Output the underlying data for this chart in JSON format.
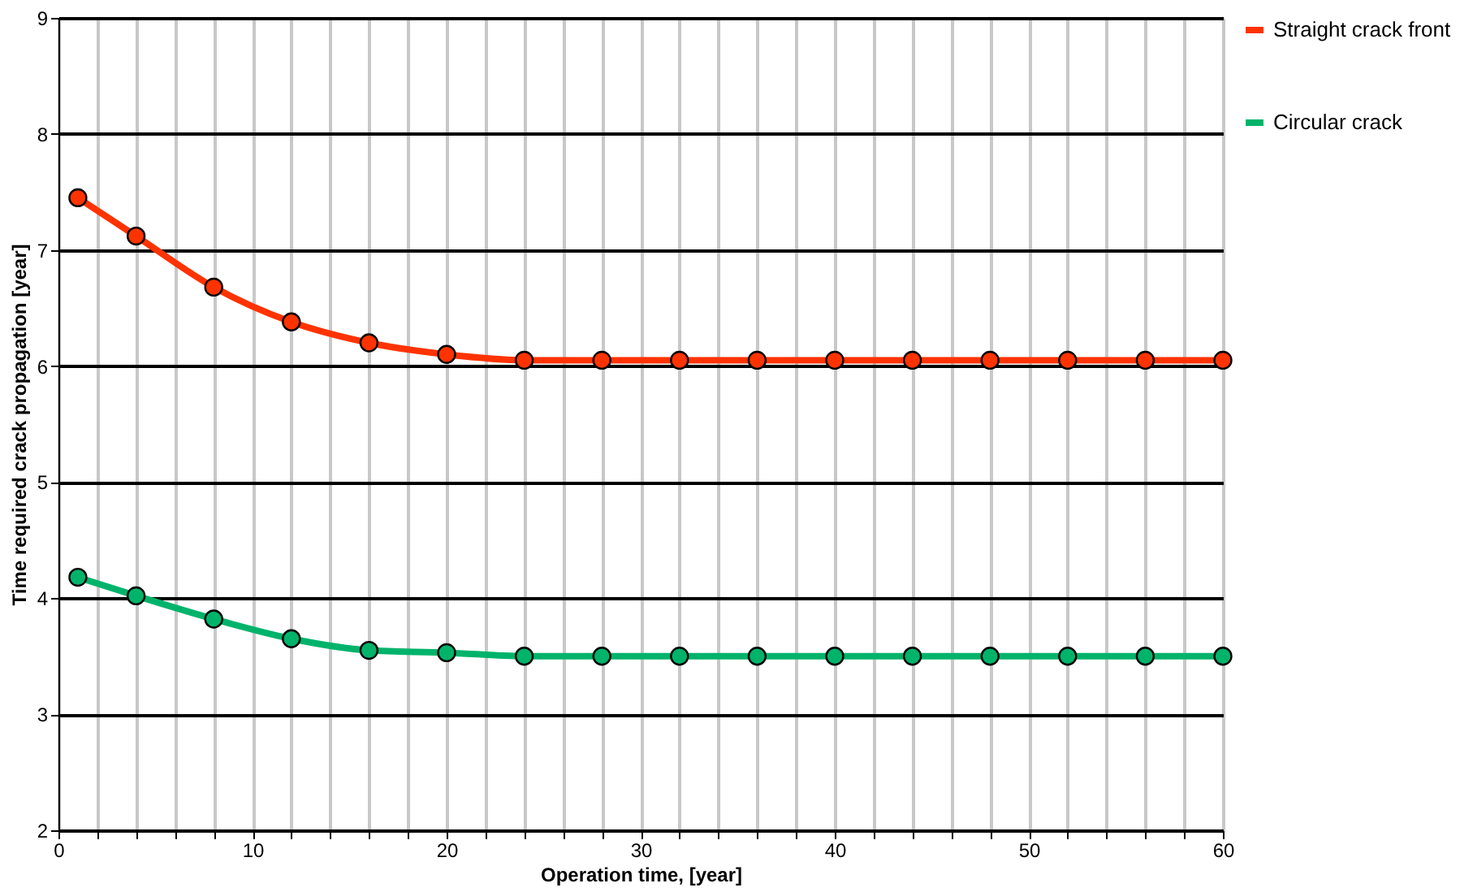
{
  "chart_data": {
    "type": "line",
    "xlabel": "Operation time, [year]",
    "ylabel": "Time required crack propagation [year]",
    "x": [
      1,
      4,
      8,
      12,
      16,
      20,
      24,
      28,
      32,
      36,
      40,
      44,
      48,
      52,
      56,
      60
    ],
    "series": [
      {
        "name": "Straight crack front",
        "color": "#ff3300",
        "values": [
          7.45,
          7.12,
          6.68,
          6.38,
          6.2,
          6.1,
          6.05,
          6.05,
          6.05,
          6.05,
          6.05,
          6.05,
          6.05,
          6.05,
          6.05,
          6.05
        ]
      },
      {
        "name": "Circular crack",
        "color": "#00b36b",
        "values": [
          4.18,
          4.02,
          3.82,
          3.65,
          3.55,
          3.53,
          3.5,
          3.5,
          3.5,
          3.5,
          3.5,
          3.5,
          3.5,
          3.5,
          3.5,
          3.5
        ]
      }
    ],
    "xlim": [
      0,
      60
    ],
    "ylim": [
      2,
      9
    ],
    "xticks": [
      0,
      {
        "value": 2,
        "label": null
      },
      {
        "value": 4,
        "label": null
      },
      {
        "value": 6,
        "label": null
      },
      {
        "value": 8,
        "label": null
      },
      10,
      {
        "value": 12,
        "label": null
      },
      {
        "value": 14,
        "label": null
      },
      {
        "value": 16,
        "label": null
      },
      {
        "value": 18,
        "label": null
      },
      20,
      {
        "value": 22,
        "label": null
      },
      {
        "value": 24,
        "label": null
      },
      {
        "value": 26,
        "label": null
      },
      {
        "value": 28,
        "label": null
      },
      30,
      {
        "value": 32,
        "label": null
      },
      {
        "value": 34,
        "label": null
      },
      {
        "value": 36,
        "label": null
      },
      {
        "value": 38,
        "label": null
      },
      40,
      {
        "value": 42,
        "label": null
      },
      {
        "value": 44,
        "label": null
      },
      {
        "value": 46,
        "label": null
      },
      {
        "value": 48,
        "label": null
      },
      50,
      {
        "value": 52,
        "label": null
      },
      {
        "value": 54,
        "label": null
      },
      {
        "value": 56,
        "label": null
      },
      {
        "value": 58,
        "label": null
      },
      60
    ],
    "yticks": [
      2,
      3,
      4,
      5,
      6,
      7,
      8,
      9
    ],
    "grid": true,
    "legend": "right",
    "marker": "circle",
    "line_style": "solid"
  }
}
